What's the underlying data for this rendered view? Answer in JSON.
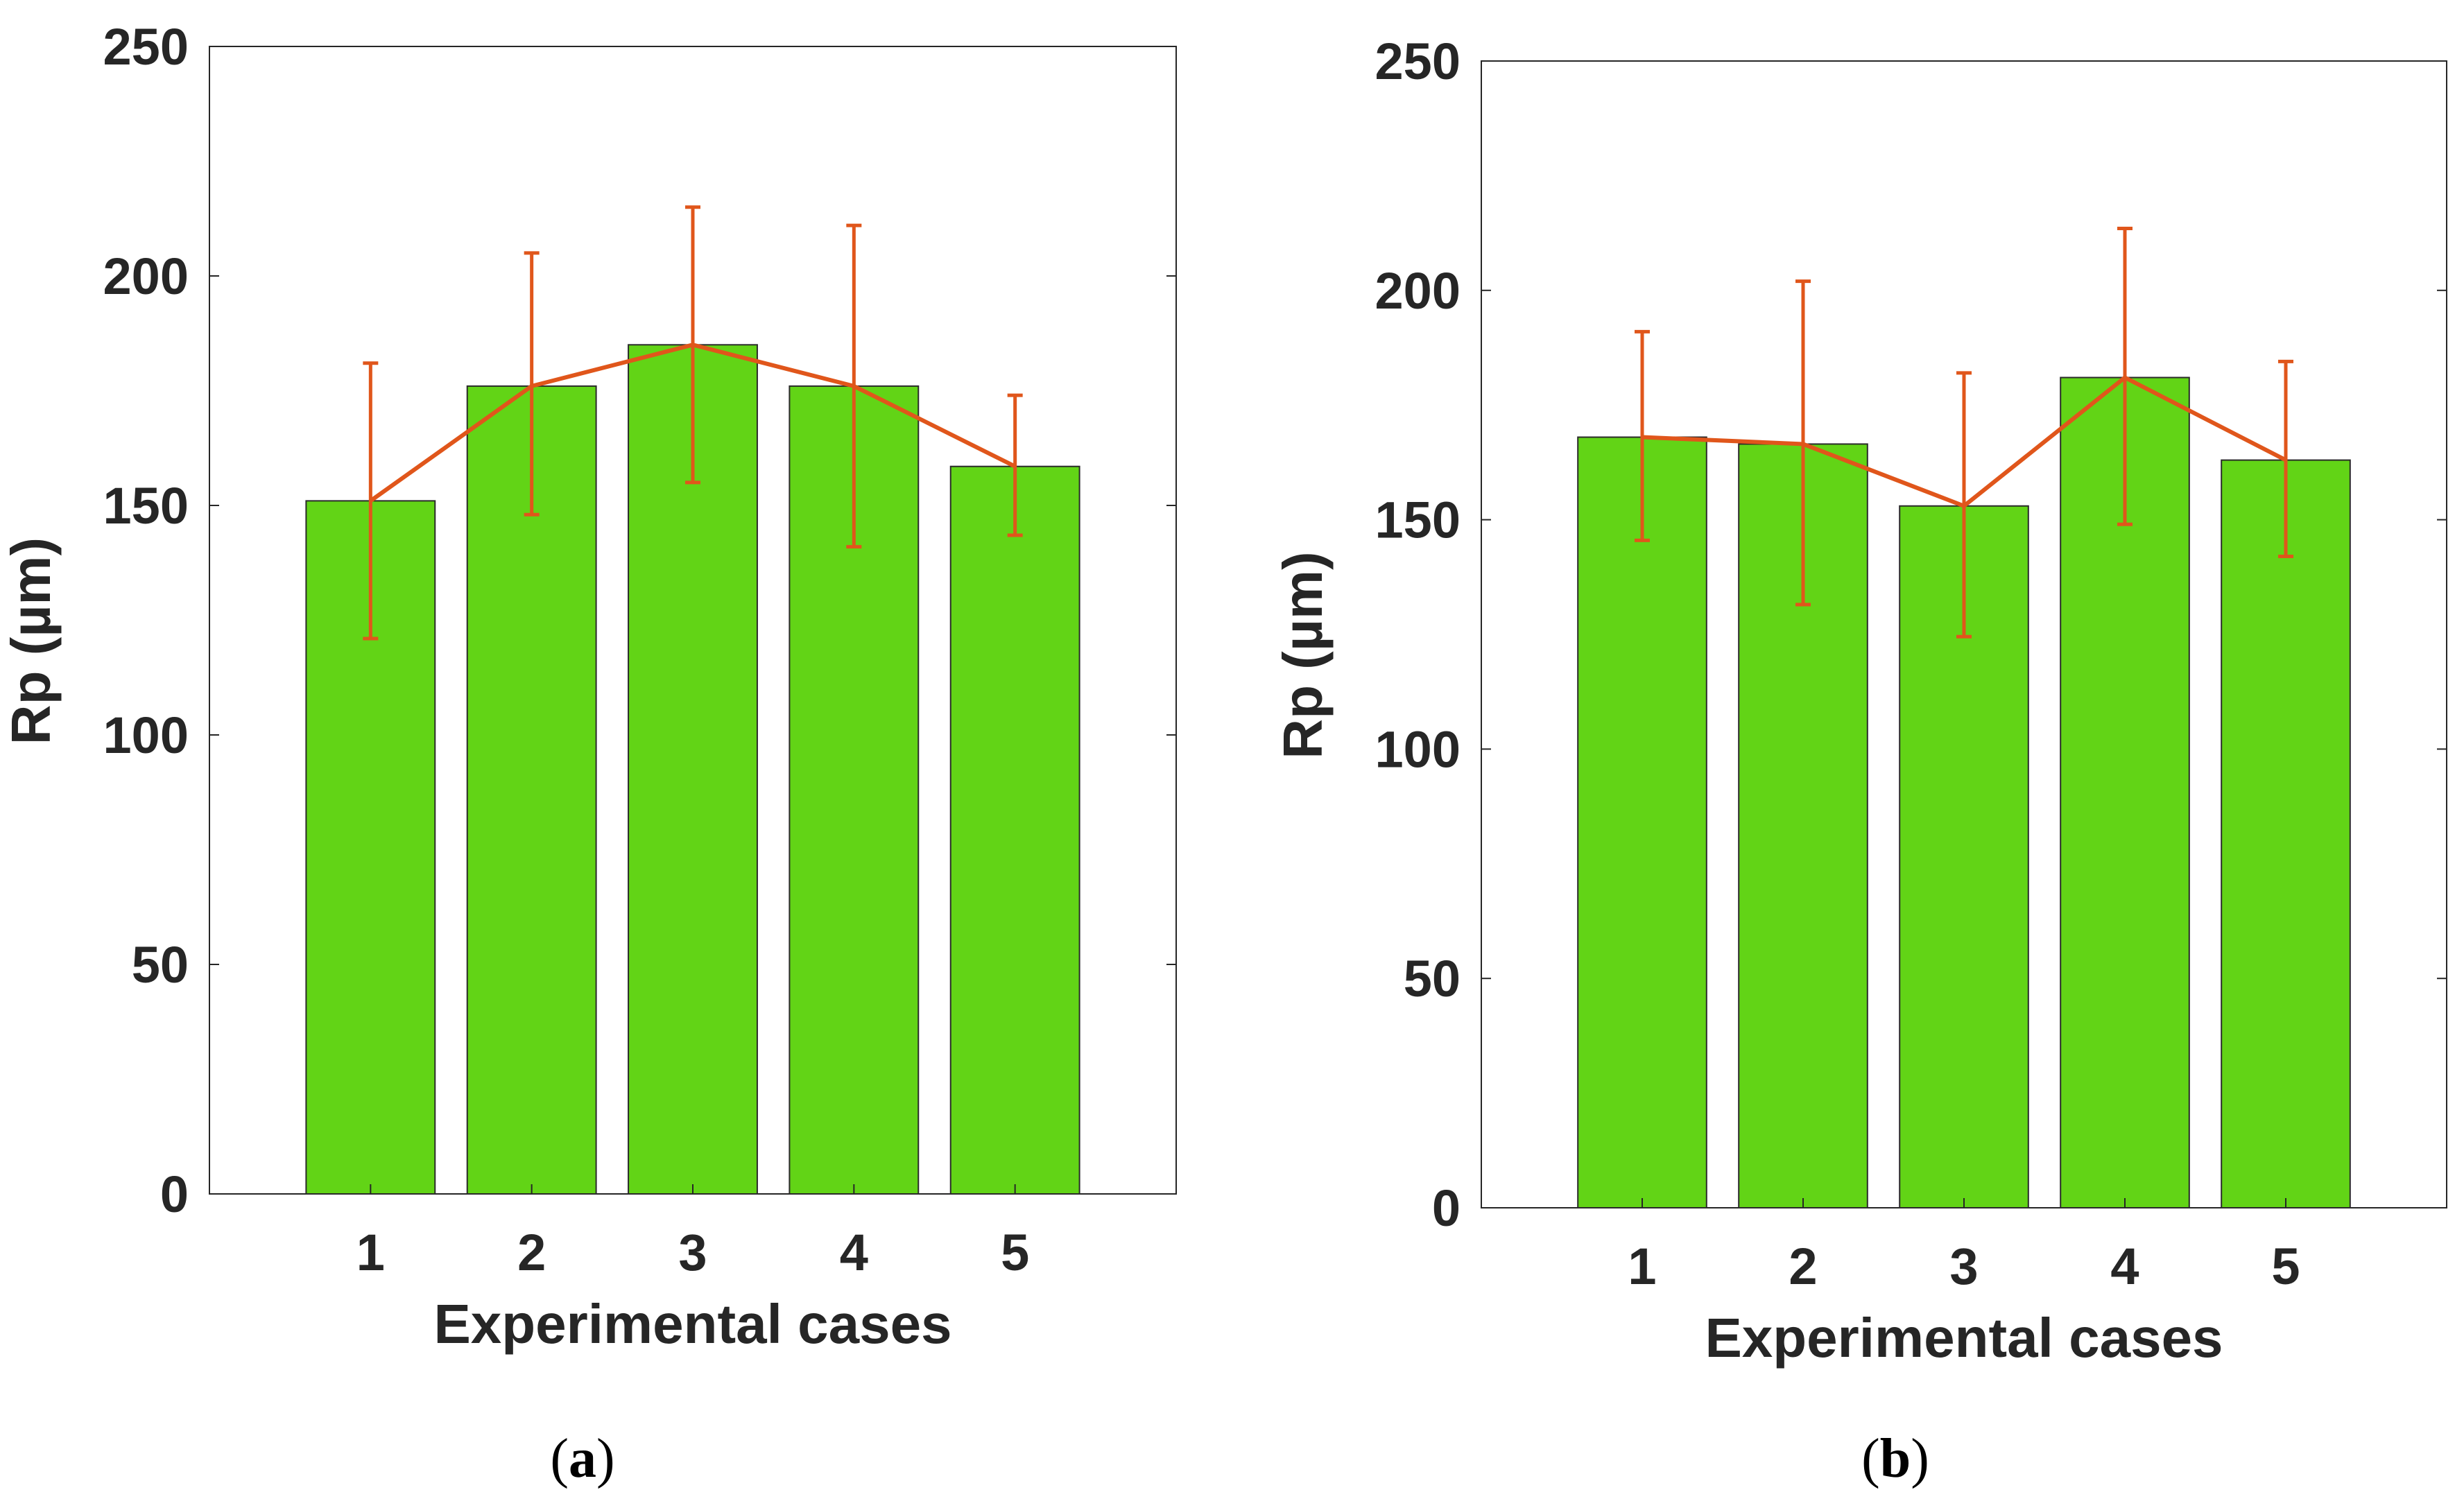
{
  "colors": {
    "bar_fill": "#62d416",
    "bar_edge": "#2a2a2a",
    "line": "#e0561b",
    "axis": "#262626"
  },
  "chart_data": [
    {
      "id": "a",
      "type": "bar",
      "caption": {
        "open": "(",
        "letter": "a",
        "close": ")"
      },
      "categories": [
        "1",
        "2",
        "3",
        "4",
        "5"
      ],
      "values": [
        151,
        176,
        185,
        176,
        158.5
      ],
      "error_low": [
        121,
        148,
        155,
        141,
        143.5
      ],
      "error_high": [
        181,
        205,
        215,
        211,
        174
      ],
      "overlay_line": "mean values connected",
      "xlabel": "Experimental cases",
      "ylabel": "Rp (µm)",
      "ylim": [
        0,
        250
      ],
      "yticks": [
        "0",
        "50",
        "100",
        "150",
        "200",
        "250"
      ],
      "grid": false
    },
    {
      "id": "b",
      "type": "bar",
      "caption": {
        "open": "(",
        "letter": "b",
        "close": ")"
      },
      "categories": [
        "1",
        "2",
        "3",
        "4",
        "5"
      ],
      "values": [
        168,
        166.5,
        153,
        181,
        163
      ],
      "error_low": [
        145.5,
        131.5,
        124.5,
        149,
        142
      ],
      "error_high": [
        191,
        202,
        182,
        213.5,
        184.5
      ],
      "overlay_line": "mean values connected",
      "xlabel": "Experimental cases",
      "ylabel": "Rp (µm)",
      "ylim": [
        0,
        250
      ],
      "yticks": [
        "0",
        "50",
        "100",
        "150",
        "200",
        "250"
      ],
      "grid": false
    }
  ]
}
